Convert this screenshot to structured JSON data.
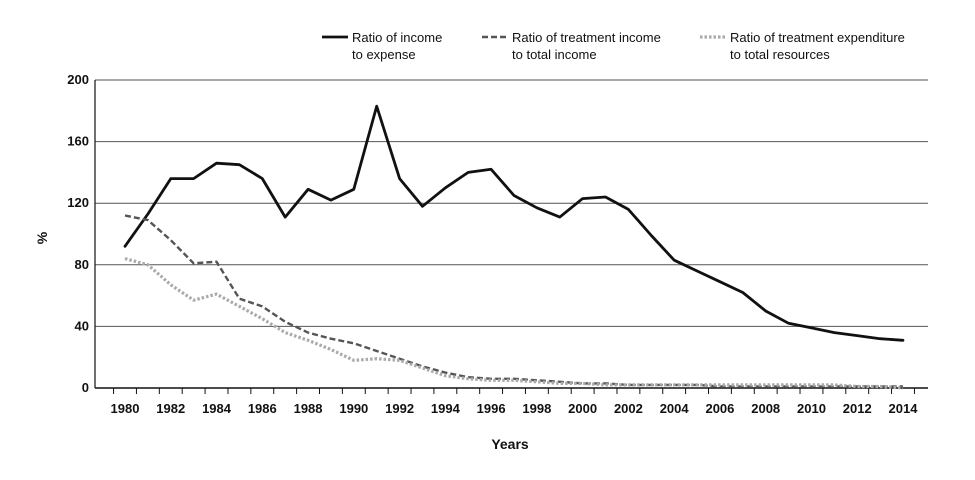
{
  "chart_data": {
    "type": "line",
    "title": "",
    "xlabel": "Years",
    "ylabel": "%",
    "ylim": [
      0,
      200
    ],
    "xlim": [
      1980,
      2014
    ],
    "y_ticks": [
      "0",
      "40",
      "80",
      "120",
      "160",
      "200"
    ],
    "x_ticks": [
      "1980",
      "1982",
      "1984",
      "1986",
      "1988",
      "1990",
      "1992",
      "1994",
      "1996",
      "1998",
      "2000",
      "2002",
      "2004",
      "2006",
      "2008",
      "2010",
      "2012",
      "2014"
    ],
    "grid": "horizontal",
    "legend_position": "top-right",
    "series": [
      {
        "name": "Ratio of income to expense",
        "legend_lines": [
          "Ratio of income",
          "to expense"
        ],
        "style": "solid",
        "color": "#111111",
        "x": [
          1980,
          1981,
          1982,
          1983,
          1984,
          1985,
          1986,
          1987,
          1988,
          1989,
          1990,
          1991,
          1992,
          1993,
          1994,
          1995,
          1996,
          1997,
          1998,
          1999,
          2000,
          2001,
          2002,
          2003,
          2004,
          2005,
          2006,
          2007,
          2008,
          2009,
          2010,
          2011,
          2012,
          2013,
          2014
        ],
        "values": [
          92,
          113,
          136,
          136,
          146,
          145,
          136,
          111,
          129,
          122,
          129,
          183,
          136,
          118,
          130,
          140,
          142,
          125,
          117,
          111,
          123,
          124,
          116,
          99,
          83,
          76,
          69,
          62,
          50,
          42,
          39,
          36,
          34,
          32,
          31
        ]
      },
      {
        "name": "Ratio of treatment income to total income",
        "legend_lines": [
          "Ratio of treatment income",
          "to total income"
        ],
        "style": "dashed",
        "color": "#555555",
        "x": [
          1980,
          1981,
          1982,
          1983,
          1984,
          1985,
          1986,
          1987,
          1988,
          1989,
          1990,
          1991,
          1992,
          1993,
          1994,
          1995,
          1996,
          1997,
          1998,
          1999,
          2000,
          2001,
          2002,
          2003,
          2004,
          2005,
          2006,
          2007,
          2008,
          2009,
          2010,
          2011,
          2012,
          2013,
          2014
        ],
        "values": [
          112,
          109,
          96,
          81,
          82,
          58,
          53,
          43,
          36,
          32,
          29,
          24,
          19,
          14,
          10,
          7,
          6,
          6,
          5,
          4,
          3,
          3,
          2,
          2,
          2,
          2,
          1,
          1,
          1,
          1,
          1,
          1,
          1,
          1,
          1
        ]
      },
      {
        "name": "Ratio of treatment expenditure to total resources",
        "legend_lines": [
          "Ratio of treatment expenditure",
          "to total resources"
        ],
        "style": "dotted",
        "color": "#aaaaaa",
        "x": [
          1980,
          1981,
          1982,
          1983,
          1984,
          1985,
          1986,
          1987,
          1988,
          1989,
          1990,
          1991,
          1992,
          1993,
          1994,
          1995,
          1996,
          1997,
          1998,
          1999,
          2000,
          2001,
          2002,
          2003,
          2004,
          2005,
          2006,
          2007,
          2008,
          2009,
          2010,
          2011,
          2012,
          2013,
          2014
        ],
        "values": [
          84,
          80,
          67,
          57,
          61,
          53,
          45,
          36,
          31,
          25,
          18,
          19,
          18,
          13,
          8,
          6,
          5,
          5,
          4,
          3,
          3,
          2,
          2,
          2,
          2,
          2,
          2,
          2,
          2,
          2,
          2,
          2,
          1,
          1,
          0
        ]
      }
    ]
  }
}
